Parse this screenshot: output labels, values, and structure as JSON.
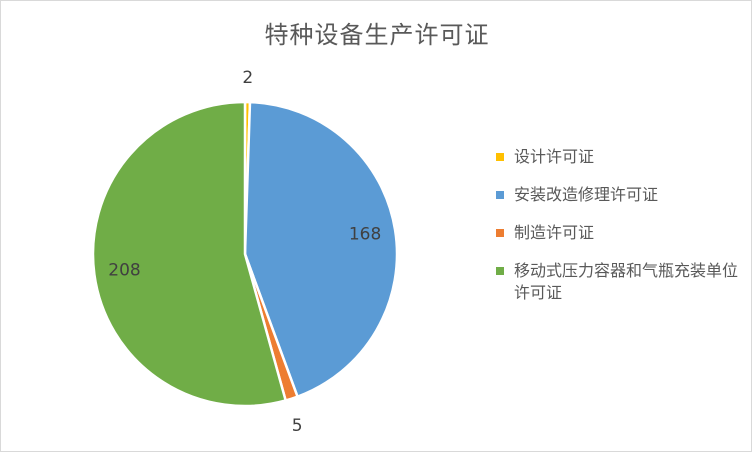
{
  "chart_data": {
    "type": "pie",
    "title": "特种设备生产许可证",
    "categories": [
      "设计许可证",
      "安装改造修理许可证",
      "制造许可证",
      "移动式压力容器和气瓶充装单位许可证"
    ],
    "values": [
      2,
      168,
      5,
      208
    ],
    "colors": [
      "#FFC000",
      "#5B9BD5",
      "#ED7D31",
      "#70AD47"
    ],
    "data_labels": [
      "2",
      "168",
      "5",
      "208"
    ],
    "legend_position": "right"
  }
}
